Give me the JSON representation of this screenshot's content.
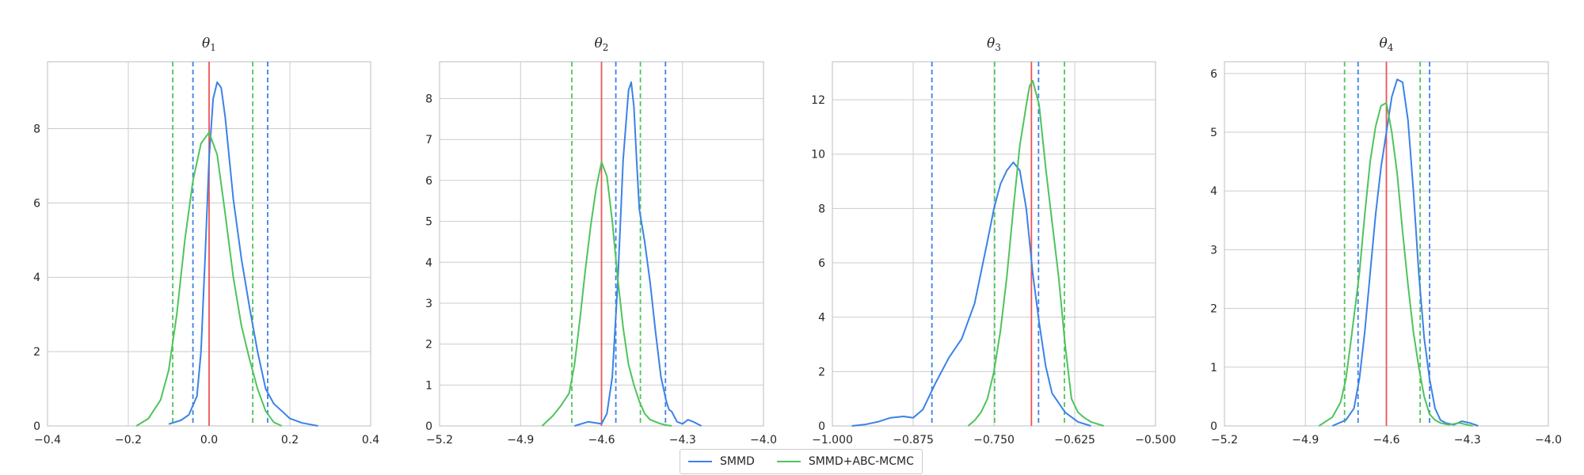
{
  "chart_data": [
    {
      "type": "line",
      "title_var": "θ",
      "title_sub": "1",
      "xlim": [
        -0.4,
        0.4
      ],
      "ylim": [
        0,
        9.8
      ],
      "x_ticks": [
        -0.4,
        -0.2,
        0.0,
        0.2,
        0.4
      ],
      "x_tick_labels": [
        "−0.4",
        "−0.2",
        "0.0",
        "0.2",
        "0.4"
      ],
      "y_ticks": [
        0,
        2,
        4,
        6,
        8
      ],
      "y_tick_labels": [
        "0",
        "2",
        "4",
        "6",
        "8"
      ],
      "true_value": 0.0,
      "series": [
        {
          "name": "SMMD",
          "ci": [
            -0.04,
            0.145
          ],
          "x": [
            -0.1,
            -0.07,
            -0.05,
            -0.03,
            -0.02,
            -0.01,
            0.0,
            0.01,
            0.02,
            0.03,
            0.04,
            0.05,
            0.06,
            0.08,
            0.1,
            0.12,
            0.14,
            0.16,
            0.18,
            0.2,
            0.23,
            0.27
          ],
          "y": [
            0.05,
            0.15,
            0.3,
            0.8,
            2.0,
            4.5,
            7.2,
            8.8,
            9.25,
            9.1,
            8.3,
            7.2,
            6.1,
            4.5,
            3.2,
            2.0,
            1.0,
            0.6,
            0.4,
            0.2,
            0.08,
            0.0
          ]
        },
        {
          "name": "SMMD+ABC-MCMC",
          "ci": [
            -0.09,
            0.108
          ],
          "x": [
            -0.18,
            -0.15,
            -0.12,
            -0.1,
            -0.08,
            -0.06,
            -0.04,
            -0.02,
            0.0,
            0.02,
            0.04,
            0.06,
            0.08,
            0.1,
            0.12,
            0.14,
            0.16,
            0.18
          ],
          "y": [
            0.0,
            0.2,
            0.7,
            1.5,
            3.0,
            5.0,
            6.6,
            7.6,
            7.9,
            7.3,
            5.7,
            4.0,
            2.7,
            1.8,
            1.0,
            0.4,
            0.1,
            0.0
          ]
        }
      ]
    },
    {
      "type": "line",
      "title_var": "θ",
      "title_sub": "2",
      "xlim": [
        -5.2,
        -4.0
      ],
      "ylim": [
        0,
        8.9
      ],
      "x_ticks": [
        -5.2,
        -4.9,
        -4.6,
        -4.3,
        -4.0
      ],
      "x_tick_labels": [
        "−5.2",
        "−4.9",
        "−4.6",
        "−4.3",
        "−4.0"
      ],
      "y_ticks": [
        0,
        1,
        2,
        3,
        4,
        5,
        6,
        7,
        8
      ],
      "y_tick_labels": [
        "0",
        "1",
        "2",
        "3",
        "4",
        "5",
        "6",
        "7",
        "8"
      ],
      "true_value": -4.6,
      "series": [
        {
          "name": "SMMD",
          "ci": [
            -4.547,
            -4.363
          ],
          "x": [
            -4.7,
            -4.65,
            -4.6,
            -4.58,
            -4.56,
            -4.54,
            -4.52,
            -4.5,
            -4.49,
            -4.48,
            -4.47,
            -4.46,
            -4.44,
            -4.42,
            -4.4,
            -4.38,
            -4.36,
            -4.35,
            -4.34,
            -4.32,
            -4.3,
            -4.28,
            -4.26,
            -4.23
          ],
          "y": [
            0.0,
            0.1,
            0.05,
            0.3,
            1.2,
            3.5,
            6.5,
            8.2,
            8.4,
            7.8,
            6.5,
            5.3,
            4.5,
            3.5,
            2.3,
            1.2,
            0.6,
            0.4,
            0.35,
            0.1,
            0.05,
            0.15,
            0.1,
            0.0
          ]
        },
        {
          "name": "SMMD+ABC-MCMC",
          "ci": [
            -4.71,
            -4.456
          ],
          "x": [
            -4.82,
            -4.78,
            -4.75,
            -4.72,
            -4.7,
            -4.68,
            -4.66,
            -4.64,
            -4.62,
            -4.6,
            -4.58,
            -4.56,
            -4.54,
            -4.52,
            -4.5,
            -4.48,
            -4.46,
            -4.44,
            -4.42,
            -4.4,
            -4.38,
            -4.36,
            -4.34
          ],
          "y": [
            0.0,
            0.25,
            0.5,
            0.8,
            1.5,
            2.6,
            3.8,
            4.9,
            5.8,
            6.45,
            6.1,
            5.0,
            3.6,
            2.4,
            1.5,
            1.0,
            0.6,
            0.3,
            0.15,
            0.1,
            0.05,
            0.02,
            0.0
          ]
        }
      ]
    },
    {
      "type": "line",
      "title_var": "θ",
      "title_sub": "3",
      "xlim": [
        -1.0,
        -0.5
      ],
      "ylim": [
        0,
        13.4
      ],
      "x_ticks": [
        -1.0,
        -0.875,
        -0.75,
        -0.625,
        -0.5
      ],
      "x_tick_labels": [
        "−1.000",
        "−0.875",
        "−0.750",
        "−0.625",
        "−0.500"
      ],
      "y_ticks": [
        0,
        2,
        4,
        6,
        8,
        10,
        12
      ],
      "y_tick_labels": [
        "0",
        "2",
        "4",
        "6",
        "8",
        "10",
        "12"
      ],
      "true_value": -0.692,
      "series": [
        {
          "name": "SMMD",
          "ci": [
            -0.846,
            -0.681
          ],
          "x": [
            -0.97,
            -0.95,
            -0.93,
            -0.91,
            -0.89,
            -0.875,
            -0.86,
            -0.84,
            -0.82,
            -0.8,
            -0.78,
            -0.76,
            -0.75,
            -0.74,
            -0.73,
            -0.72,
            -0.71,
            -0.7,
            -0.69,
            -0.68,
            -0.67,
            -0.66,
            -0.64,
            -0.62,
            -0.6
          ],
          "y": [
            0.0,
            0.05,
            0.15,
            0.3,
            0.35,
            0.3,
            0.6,
            1.6,
            2.5,
            3.2,
            4.5,
            6.8,
            8.0,
            8.9,
            9.4,
            9.7,
            9.4,
            8.0,
            5.6,
            3.8,
            2.2,
            1.2,
            0.5,
            0.15,
            0.0
          ]
        },
        {
          "name": "SMMD+ABC-MCMC",
          "ci": [
            -0.749,
            -0.641
          ],
          "x": [
            -0.79,
            -0.78,
            -0.77,
            -0.76,
            -0.75,
            -0.74,
            -0.73,
            -0.72,
            -0.71,
            -0.7,
            -0.695,
            -0.69,
            -0.68,
            -0.67,
            -0.66,
            -0.65,
            -0.64,
            -0.63,
            -0.62,
            -0.61,
            -0.6,
            -0.58
          ],
          "y": [
            0.0,
            0.2,
            0.5,
            1.0,
            2.0,
            3.5,
            5.5,
            8.0,
            10.3,
            11.8,
            12.5,
            12.7,
            11.8,
            9.5,
            7.5,
            5.5,
            3.0,
            1.0,
            0.5,
            0.3,
            0.15,
            0.0
          ]
        }
      ]
    },
    {
      "type": "line",
      "title_var": "θ",
      "title_sub": "4",
      "xlim": [
        -5.2,
        -4.0
      ],
      "ylim": [
        0,
        6.2
      ],
      "x_ticks": [
        -5.2,
        -4.9,
        -4.6,
        -4.3,
        -4.0
      ],
      "x_tick_labels": [
        "−5.2",
        "−4.9",
        "−4.6",
        "−4.3",
        "−4.0"
      ],
      "y_ticks": [
        0,
        1,
        2,
        3,
        4,
        5,
        6
      ],
      "y_tick_labels": [
        "0",
        "1",
        "2",
        "3",
        "4",
        "5",
        "6"
      ],
      "true_value": -4.6,
      "series": [
        {
          "name": "SMMD",
          "ci": [
            -4.705,
            -4.44
          ],
          "x": [
            -4.8,
            -4.75,
            -4.72,
            -4.7,
            -4.68,
            -4.66,
            -4.64,
            -4.62,
            -4.6,
            -4.58,
            -4.56,
            -4.54,
            -4.52,
            -4.5,
            -4.48,
            -4.46,
            -4.44,
            -4.42,
            -4.4,
            -4.38,
            -4.35,
            -4.32,
            -4.29,
            -4.26
          ],
          "y": [
            0.0,
            0.1,
            0.3,
            0.8,
            1.6,
            2.6,
            3.6,
            4.4,
            5.0,
            5.6,
            5.9,
            5.85,
            5.2,
            4.0,
            2.6,
            1.5,
            0.8,
            0.3,
            0.1,
            0.05,
            0.02,
            0.08,
            0.05,
            0.0
          ]
        },
        {
          "name": "SMMD+ABC-MCMC",
          "ci": [
            -4.755,
            -4.475
          ],
          "x": [
            -4.85,
            -4.8,
            -4.77,
            -4.75,
            -4.73,
            -4.7,
            -4.68,
            -4.66,
            -4.64,
            -4.62,
            -4.6,
            -4.58,
            -4.56,
            -4.54,
            -4.52,
            -4.5,
            -4.48,
            -4.46,
            -4.44,
            -4.42,
            -4.4,
            -4.37,
            -4.33,
            -4.28
          ],
          "y": [
            0.0,
            0.15,
            0.4,
            0.8,
            1.5,
            2.6,
            3.6,
            4.5,
            5.1,
            5.45,
            5.5,
            5.0,
            4.3,
            3.3,
            2.4,
            1.6,
            1.0,
            0.5,
            0.2,
            0.1,
            0.05,
            0.02,
            0.05,
            0.0
          ]
        }
      ]
    }
  ],
  "legend": {
    "items": [
      {
        "label": "SMMD",
        "color": "#3b82e8"
      },
      {
        "label": "SMMD+ABC-MCMC",
        "color": "#4ec45c"
      }
    ]
  },
  "colors": {
    "smmd": "#3b82e8",
    "abc": "#4ec45c",
    "true": "#ee5555",
    "grid": "#cccccc",
    "axis": "#c8c8c8"
  }
}
